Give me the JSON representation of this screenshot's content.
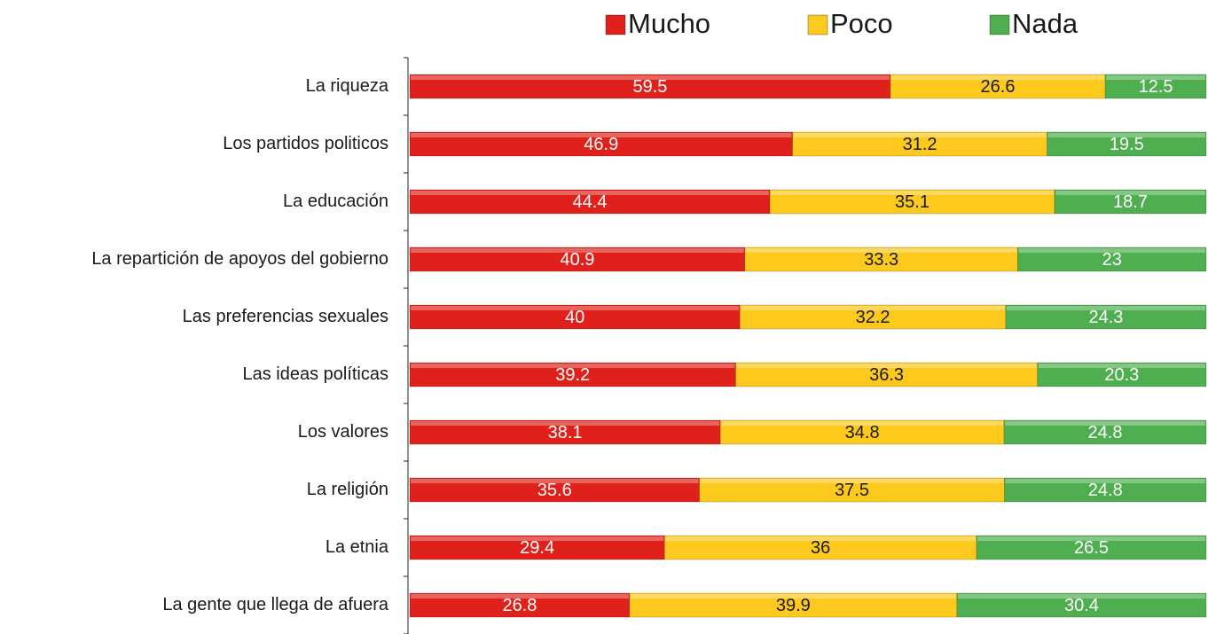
{
  "chart_data": {
    "type": "bar",
    "orientation": "horizontal",
    "stacking": "percent",
    "categories": [
      "La riqueza",
      "Los partidos politicos",
      "La educación",
      "La repartición de apoyos del gobierno",
      "Las preferencias sexuales",
      "Las ideas políticas",
      "Los valores",
      "La religión",
      "La etnia",
      "La gente que llega de afuera"
    ],
    "series": [
      {
        "name": "Mucho",
        "color": "#e0201b",
        "values": [
          59.5,
          46.9,
          44.4,
          40.9,
          40,
          39.2,
          38.1,
          35.6,
          29.4,
          26.8
        ]
      },
      {
        "name": "Poco",
        "color": "#fcc91c",
        "values": [
          26.6,
          31.2,
          35.1,
          33.3,
          32.2,
          36.3,
          34.8,
          37.5,
          36,
          39.9
        ]
      },
      {
        "name": "Nada",
        "color": "#4fae4f",
        "values": [
          12.5,
          19.5,
          18.7,
          23,
          24.3,
          20.3,
          24.8,
          24.8,
          26.5,
          30.4
        ]
      }
    ],
    "legend": "top"
  }
}
